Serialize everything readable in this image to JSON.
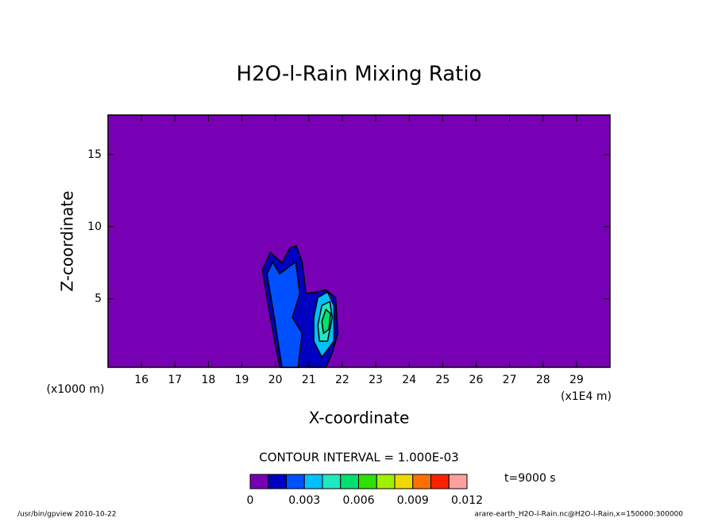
{
  "chart_data": {
    "type": "contour",
    "title": "H2O-l-Rain Mixing Ratio",
    "xlabel": "X-coordinate",
    "ylabel": "Z-coordinate",
    "xunit": "(x1E4 m)",
    "yunit": "(x1000 m)",
    "xlim": [
      15,
      30
    ],
    "xticks": [
      16,
      17,
      18,
      19,
      20,
      21,
      22,
      23,
      24,
      25,
      26,
      27,
      28,
      29
    ],
    "ylim": [
      0.25,
      17.75
    ],
    "yticks": [
      5,
      10,
      15
    ],
    "background": "#7800b4",
    "colorbar": {
      "levels": [
        0,
        0.001,
        0.002,
        0.003,
        0.004,
        0.005,
        0.006,
        0.007,
        0.008,
        0.009,
        0.01,
        0.011,
        0.012
      ],
      "colors": [
        "#7800b4",
        "#0000c0",
        "#0050ff",
        "#00c0ff",
        "#20e8c0",
        "#00e070",
        "#30e000",
        "#a0f000",
        "#f0d800",
        "#ff7000",
        "#ff2000",
        "#ffa0a0"
      ],
      "ticks": [
        0,
        0.003,
        0.006,
        0.009,
        0.012
      ]
    },
    "contour_interval": "CONTOUR INTERVAL = 1.000E-03",
    "time": "t=9000 s",
    "footer_left": "/usr/bin/gpview  2010-10-22",
    "footer_right": "arare-earth_H2O-l-Rain.nc@H2O-l-Rain,x=150000:300000",
    "contours": [
      {
        "level": 0.001,
        "x": [
          20.13,
          19.85,
          19.61,
          19.85,
          20.2,
          20.44,
          20.63,
          20.8,
          20.92,
          21.23,
          21.51,
          21.8,
          21.87,
          21.7,
          21.51
        ],
        "z": [
          0.25,
          3.71,
          7.01,
          8.22,
          7.5,
          8.55,
          8.66,
          7.56,
          5.36,
          5.47,
          5.63,
          5.09,
          2.61,
          1.24,
          0.25
        ]
      },
      {
        "level": 0.002,
        "x": [
          20.2,
          19.97,
          19.75,
          19.92,
          20.13,
          20.44,
          20.61,
          20.73,
          20.51,
          20.8,
          20.68
        ],
        "z": [
          0.25,
          3.71,
          6.73,
          7.56,
          6.73,
          7.28,
          7.56,
          5.36,
          3.71,
          2.61,
          0.25
        ]
      },
      {
        "level": 0.003,
        "x": [
          21.15,
          21.27,
          21.56,
          21.75,
          21.75,
          21.39,
          21.15
        ],
        "z": [
          3.71,
          5.09,
          5.47,
          4.54,
          2.06,
          0.96,
          2.06
        ]
      },
      {
        "level": 0.004,
        "x": [
          21.27,
          21.39,
          21.63,
          21.7,
          21.56,
          21.32
        ],
        "z": [
          3.16,
          4.54,
          4.81,
          3.71,
          2.06,
          2.06
        ]
      },
      {
        "level": 0.005,
        "x": [
          21.39,
          21.51,
          21.65,
          21.6,
          21.44
        ],
        "z": [
          3.43,
          4.26,
          3.98,
          2.88,
          2.61
        ]
      }
    ]
  }
}
